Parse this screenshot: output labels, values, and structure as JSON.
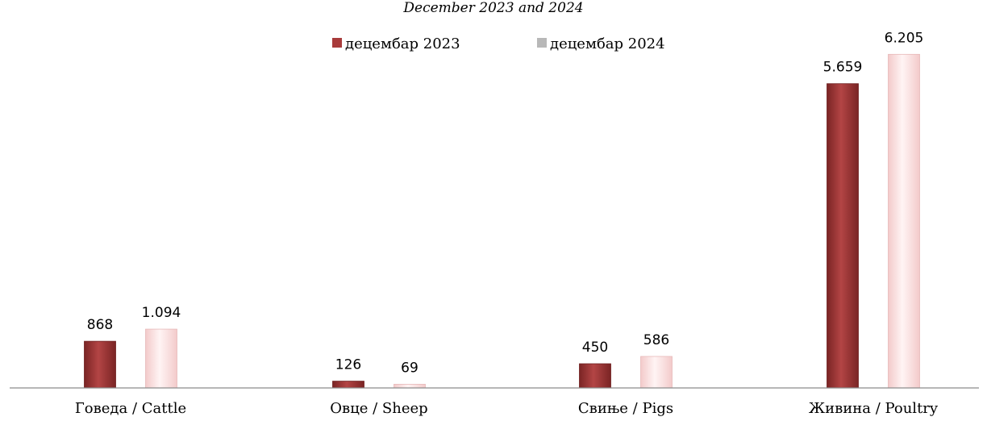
{
  "chart_data": {
    "type": "bar",
    "subtitle": "December 2023 and 2024",
    "categories": [
      "Говеда / Cattle",
      "Овце / Sheep",
      "Свиње / Pigs",
      "Живина / Poultry"
    ],
    "series": [
      {
        "name": "децембар 2023",
        "values": [
          868,
          126,
          450,
          5659
        ],
        "labels": [
          "868",
          "126",
          "450",
          "5.659"
        ],
        "color": "#a83b3b"
      },
      {
        "name": "децембар 2024",
        "values": [
          1094,
          69,
          586,
          6205
        ],
        "labels": [
          "1.094",
          "69",
          "586",
          "6.205"
        ],
        "color": "#fbe3e3"
      }
    ],
    "ylim": [
      0,
      6600
    ],
    "grid": false,
    "legend": "top-center"
  }
}
